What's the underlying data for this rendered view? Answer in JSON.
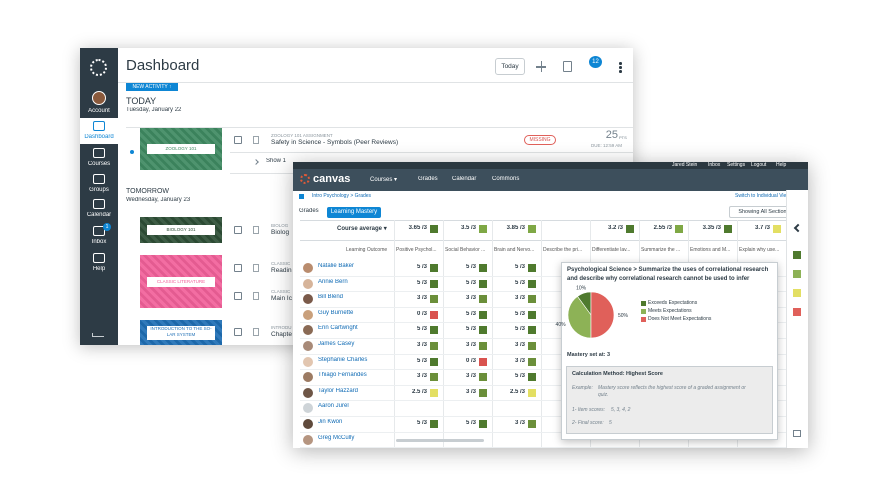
{
  "dashboard": {
    "nav": [
      "Account",
      "Dashboard",
      "Courses",
      "Groups",
      "Calendar",
      "Inbox",
      "Help"
    ],
    "inbox_badge": "1",
    "title": "Dashboard",
    "today_button": "Today",
    "notification_badge": "12",
    "new_activity": "NEW ACTIVITY ↑",
    "sections": [
      {
        "heading": "TODAY",
        "date": "Tuesday, January 22"
      },
      {
        "heading": "TOMORROW",
        "date": "Wednesday, January 23"
      }
    ],
    "cards": [
      {
        "course": "ZOOLOGY 101",
        "color": "#3f8a62",
        "rows": [
          {
            "type": "ZOOLOGY 101 ASSIGNMENT",
            "title": "Safety in Science - Symbols (Peer Reviews)"
          }
        ],
        "status": "MISSING",
        "points": "25",
        "points_unit": "PTS",
        "due": "DUE: 12:59 AM",
        "more": "Show 1"
      },
      {
        "course": "BIOLOGY 101",
        "color": "#2e4f36",
        "rows": [
          {
            "type": "BIOLOG",
            "title": "Biolog"
          }
        ]
      },
      {
        "course": "CLASSIC LITERATURE",
        "color": "#f2619a",
        "rows": [
          {
            "type": "CLASSIC",
            "title": "Readin"
          },
          {
            "type": "CLASSIC",
            "title": "Main Ic"
          }
        ]
      },
      {
        "course": "INTRODUCTION TO THE SO-LAR SYSTEM",
        "color": "#1f6fb5",
        "rows": [
          {
            "type": "INTRODU",
            "title": "Chapte"
          }
        ]
      }
    ]
  },
  "gradebook": {
    "user_links": [
      "Jared Stein",
      "Inbox",
      "Settings",
      "Logout",
      "Help"
    ],
    "brand": "canvas",
    "nav": [
      "Courses ▾",
      "Grades",
      "Calendar",
      "Commons"
    ],
    "breadcrumb": "Intro Psychology > Grades",
    "switch_view": "Switch to Individual View",
    "tabs": [
      "Grades",
      "Learning Mastery"
    ],
    "sections_filter": "Showing All Sections ▾",
    "course_average_label": "Course average ▾",
    "outcome_label": "Learning Outcome",
    "columns": [
      "Positive Psychol...",
      "Social Behavior ...",
      "Brain and Nervo...",
      "Describe the pri...",
      "Differentiate lav...",
      "Summarize the ...",
      "Emotions and M...",
      "Explain why use..."
    ],
    "averages": [
      {
        "score": "3.65 /3",
        "color": "#4f7a2e"
      },
      {
        "score": "3.5 /3",
        "color": "#7fa845"
      },
      {
        "score": "3.85 /3",
        "color": "#7fa845"
      },
      null,
      {
        "score": "3.2 /3",
        "color": "#4f7a2e"
      },
      {
        "score": "2.55 /3",
        "color": "#7fa845"
      },
      {
        "score": "3.35 /3",
        "color": "#4f7a2e"
      },
      {
        "score": "3.7 /3",
        "color": "#e3df63"
      }
    ],
    "students": [
      {
        "name": "Natalie Baker",
        "scores": [
          {
            "score": "5 /3",
            "color": "#4f7a2e"
          },
          {
            "score": "5 /3",
            "color": "#4f7a2e"
          },
          {
            "score": "5 /3",
            "color": "#4f7a2e"
          }
        ]
      },
      {
        "name": "Annie Bern",
        "scores": [
          {
            "score": "5 /3",
            "color": "#4f7a2e"
          },
          {
            "score": "5 /3",
            "color": "#4f7a2e"
          },
          {
            "score": "5 /3",
            "color": "#4f7a2e"
          }
        ]
      },
      {
        "name": "Bill Blend",
        "scores": [
          {
            "score": "3 /3",
            "color": "#6b8f3a"
          },
          {
            "score": "3 /3",
            "color": "#6b8f3a"
          },
          {
            "score": "3 /3",
            "color": "#6b8f3a"
          }
        ]
      },
      {
        "name": "Guy Burnette",
        "scores": [
          {
            "score": "0 /3",
            "color": "#d9534f"
          },
          {
            "score": "5 /3",
            "color": "#4f7a2e"
          },
          {
            "score": "5 /3",
            "color": "#4f7a2e"
          }
        ]
      },
      {
        "name": "Erin Cartwright",
        "scores": [
          {
            "score": "5 /3",
            "color": "#4f7a2e"
          },
          {
            "score": "5 /3",
            "color": "#4f7a2e"
          },
          {
            "score": "5 /3",
            "color": "#4f7a2e"
          }
        ]
      },
      {
        "name": "James Casey",
        "scores": [
          {
            "score": "3 /3",
            "color": "#6b8f3a"
          },
          {
            "score": "3 /3",
            "color": "#6b8f3a"
          },
          {
            "score": "3 /3",
            "color": "#6b8f3a"
          }
        ]
      },
      {
        "name": "Stephanie Charles",
        "scores": [
          {
            "score": "5 /3",
            "color": "#4f7a2e"
          },
          {
            "score": "0 /3",
            "color": "#d9534f"
          },
          {
            "score": "3 /3",
            "color": "#6b8f3a"
          }
        ]
      },
      {
        "name": "Thiago Fernandes",
        "scores": [
          {
            "score": "3 /3",
            "color": "#6b8f3a"
          },
          {
            "score": "3 /3",
            "color": "#6b8f3a"
          },
          {
            "score": "5 /3",
            "color": "#4f7a2e"
          }
        ]
      },
      {
        "name": "Taylor Hazzard",
        "scores": [
          {
            "score": "2.5 /3",
            "color": "#e3df63"
          },
          {
            "score": "3 /3",
            "color": "#6b8f3a"
          },
          {
            "score": "2.5 /3",
            "color": "#e3df63"
          }
        ]
      },
      {
        "name": "Aaron Jurel",
        "scores": []
      },
      {
        "name": "Jin Kwon",
        "scores": [
          {
            "score": "5 /3",
            "color": "#4f7a2e"
          },
          {
            "score": "5 /3",
            "color": "#4f7a2e"
          },
          {
            "score": "3 /3",
            "color": "#6b8f3a"
          }
        ]
      },
      {
        "name": "Greg McCully",
        "scores": []
      }
    ],
    "popup": {
      "title": "Psychological Science > Summarize the uses of correlational research and describe why correlational research cannot be used to infer causality",
      "pie": [
        {
          "label": "Exceeds Expectations",
          "value": 10,
          "value_label": "10%",
          "color": "#4f7a2e"
        },
        {
          "label": "Meets Expectations",
          "value": 40,
          "value_label": "40%",
          "color": "#8db256"
        },
        {
          "label": "Does Not Meet Expectations",
          "value": 50,
          "value_label": "50%",
          "color": "#e0605a"
        }
      ],
      "mastery": "Mastery set at: 3",
      "calc_label": "Calculation Method:",
      "calc_value": "Highest Score",
      "example_label": "Example:",
      "example_text": "Mastery score reflects the highest score of a graded assignment or quiz.",
      "item_label": "1- Item scores:",
      "item_value": "5, 3, 4, 2",
      "final_label": "2- Final score:",
      "final_value": "5"
    }
  }
}
